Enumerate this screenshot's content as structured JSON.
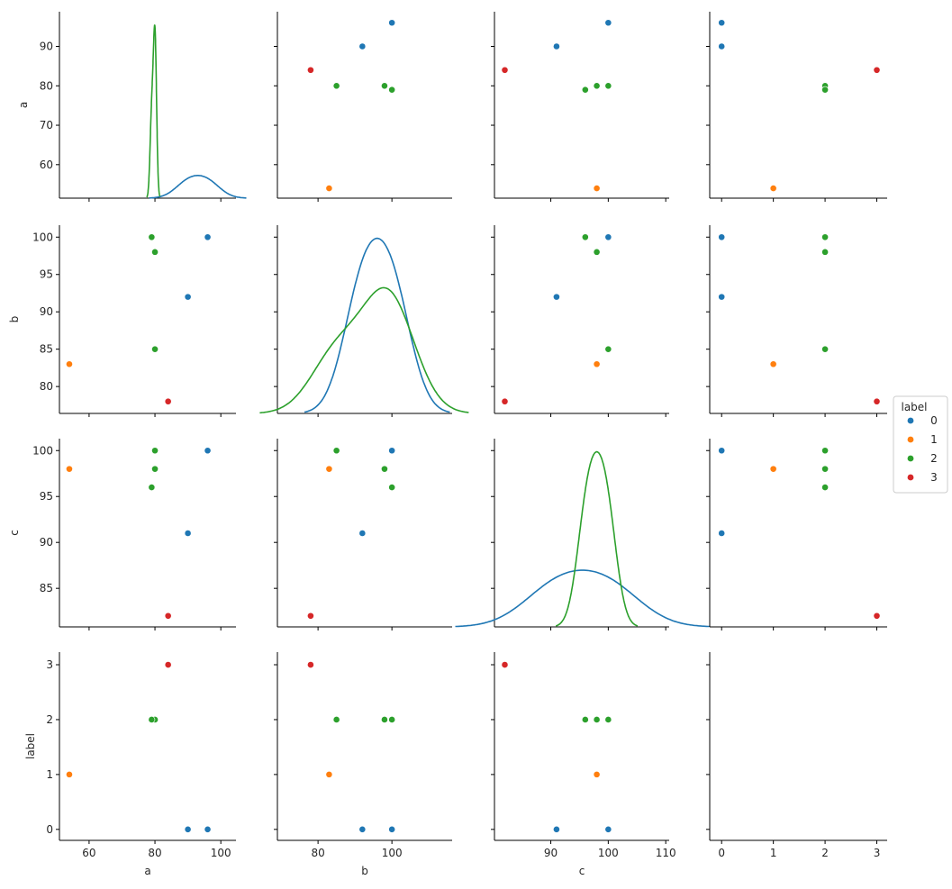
{
  "chart_data": {
    "type": "scatter",
    "title": "",
    "kind": "pairplot",
    "variables": [
      "a",
      "b",
      "c",
      "label"
    ],
    "hue": "label",
    "hue_levels": [
      "0",
      "1",
      "2",
      "3"
    ],
    "palette": {
      "0": "#1f77b4",
      "1": "#ff7f0e",
      "2": "#2ca02c",
      "3": "#d62728"
    },
    "points": [
      {
        "a": 90,
        "b": 92,
        "c": 91,
        "label": 0
      },
      {
        "a": 96,
        "b": 100,
        "c": 100,
        "label": 0
      },
      {
        "a": 54,
        "b": 83,
        "c": 98,
        "label": 1
      },
      {
        "a": 80,
        "b": 85,
        "c": 100,
        "label": 2
      },
      {
        "a": 80,
        "b": 98,
        "c": 98,
        "label": 2
      },
      {
        "a": 79,
        "b": 100,
        "c": 96,
        "label": 2
      },
      {
        "a": 84,
        "b": 78,
        "c": 82,
        "label": 3
      }
    ],
    "diagonal": "kde",
    "axes": {
      "a": {
        "range": [
          51,
          104.6
        ],
        "ticks": [
          60,
          80,
          100
        ],
        "yrange": [
          51.5,
          98.8
        ],
        "yticks": [
          60,
          70,
          80,
          90
        ]
      },
      "b": {
        "range": [
          69,
          116.3
        ],
        "ticks": [
          80,
          100
        ],
        "yrange": [
          76.4,
          101.6
        ],
        "yticks": [
          80,
          85,
          90,
          95,
          100
        ]
      },
      "c": {
        "range": [
          80.2,
          110.6
        ],
        "ticks": [
          90,
          100,
          110
        ],
        "yrange": [
          80.8,
          101.3
        ],
        "yticks": [
          85,
          90,
          95,
          100
        ]
      },
      "label": {
        "range": [
          -0.23,
          3.2
        ],
        "ticks": [
          0,
          1,
          2,
          3
        ],
        "yrange": [
          -0.2,
          3.23
        ],
        "yticks": [
          0,
          1,
          2,
          3
        ]
      }
    },
    "legend": {
      "title": "label",
      "entries": [
        "0",
        "1",
        "2",
        "3"
      ],
      "position": "right"
    },
    "grid": false
  },
  "legend": {
    "title": "label",
    "items": [
      {
        "label": "0",
        "color": "#1f77b4"
      },
      {
        "label": "1",
        "color": "#ff7f0e"
      },
      {
        "label": "2",
        "color": "#2ca02c"
      },
      {
        "label": "3",
        "color": "#d62728"
      }
    ]
  },
  "axis_labels": {
    "a": "a",
    "b": "b",
    "c": "c",
    "label": "label"
  }
}
